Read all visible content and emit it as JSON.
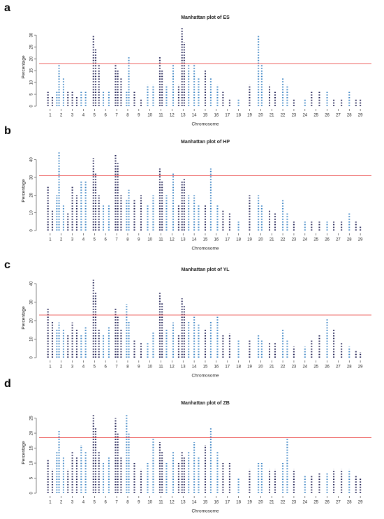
{
  "chart_data": [
    {
      "type": "manhattan",
      "panel_label": "a",
      "title": "Manhattan plot of ES",
      "x_label": "Chromosome",
      "y_label": "Percentage",
      "xlim": [
        0,
        30
      ],
      "xticks": [
        1,
        2,
        3,
        4,
        5,
        6,
        7,
        8,
        9,
        10,
        11,
        12,
        13,
        14,
        15,
        16,
        17,
        18,
        19,
        20,
        21,
        22,
        23,
        24,
        25,
        26,
        27,
        28,
        29
      ],
      "ylim": [
        0,
        33
      ],
      "yticks": [
        0,
        5,
        10,
        15,
        20,
        25,
        30
      ],
      "threshold": 18,
      "threshold_color": "#e8312f",
      "colors": [
        "#1c1c50",
        "#3b84c4"
      ],
      "x": [
        0.8,
        1.2,
        1.6,
        1.8,
        2.2,
        2.6,
        3,
        3.4,
        3.8,
        4.2,
        4.9,
        5.1,
        5.4,
        5.8,
        6.3,
        6.9,
        7.1,
        7.4,
        7.9,
        8.1,
        8.6,
        9.2,
        9.8,
        10.3,
        10.9,
        11.1,
        11.5,
        12.1,
        12.6,
        12.9,
        13.1,
        13.5,
        14,
        14.4,
        15,
        15.5,
        16.1,
        16.6,
        17.2,
        18,
        19,
        19.8,
        20.1,
        20.8,
        21.3,
        22,
        22.4,
        23,
        24,
        24.6,
        25.3,
        26,
        26.6,
        27.3,
        28,
        28.6,
        29
      ],
      "values": [
        6,
        4,
        6,
        18,
        12,
        6,
        6,
        4,
        6,
        6,
        30,
        24,
        18,
        6,
        6,
        18,
        15,
        12,
        6,
        21,
        6,
        3,
        9,
        9,
        21,
        15,
        9,
        18,
        9,
        33,
        27,
        18,
        18,
        12,
        15,
        12,
        9,
        6,
        3,
        3,
        9,
        30,
        18,
        9,
        6,
        12,
        9,
        3,
        3,
        6,
        6,
        6,
        3,
        3,
        6,
        3,
        3
      ]
    },
    {
      "type": "manhattan",
      "panel_label": "b",
      "title": "Manhattan plot of HP",
      "x_label": "Chromosome",
      "y_label": "Percentage",
      "xlim": [
        0,
        30
      ],
      "xticks": [
        1,
        2,
        3,
        4,
        5,
        6,
        7,
        8,
        9,
        10,
        11,
        12,
        13,
        14,
        15,
        16,
        17,
        18,
        19,
        20,
        21,
        22,
        23,
        24,
        25,
        26,
        27,
        28,
        29
      ],
      "ylim": [
        0,
        45
      ],
      "yticks": [
        0,
        10,
        20,
        30,
        40
      ],
      "threshold": 31,
      "threshold_color": "#e8312f",
      "colors": [
        "#1c1c50",
        "#3b84c4"
      ],
      "x": [
        0.8,
        1.2,
        1.6,
        1.8,
        2.2,
        2.6,
        3,
        3.4,
        3.8,
        4.2,
        4.9,
        5.1,
        5.4,
        5.8,
        6.3,
        6.9,
        7.1,
        7.4,
        7.9,
        8.1,
        8.6,
        9.2,
        9.8,
        10.3,
        10.9,
        11.1,
        11.5,
        12.1,
        12.6,
        12.9,
        13.1,
        13.5,
        14,
        14.4,
        15,
        15.5,
        16.1,
        16.6,
        17.2,
        18,
        19,
        19.8,
        20.1,
        20.8,
        21.3,
        22,
        22.4,
        23,
        24,
        24.6,
        25.3,
        26,
        26.6,
        27.3,
        28,
        28.6,
        29
      ],
      "values": [
        25,
        12,
        20,
        45,
        15,
        10,
        25,
        20,
        28,
        28,
        41,
        33,
        20,
        15,
        15,
        43,
        38,
        20,
        18,
        23,
        18,
        20,
        15,
        20,
        35,
        28,
        20,
        33,
        15,
        28,
        30,
        20,
        20,
        15,
        15,
        35,
        15,
        12,
        10,
        5,
        20,
        20,
        15,
        12,
        10,
        18,
        10,
        5,
        5,
        5,
        5,
        5,
        5,
        5,
        10,
        5,
        3
      ]
    },
    {
      "type": "manhattan",
      "panel_label": "c",
      "title": "Manhattan plot of YL",
      "x_label": "Chromosome",
      "y_label": "Percentage",
      "xlim": [
        0,
        30
      ],
      "xticks": [
        1,
        2,
        3,
        4,
        5,
        6,
        7,
        8,
        9,
        10,
        11,
        12,
        13,
        14,
        15,
        16,
        17,
        18,
        19,
        20,
        21,
        22,
        23,
        24,
        25,
        26,
        27,
        28,
        29
      ],
      "ylim": [
        0,
        43
      ],
      "yticks": [
        0,
        10,
        20,
        30,
        40
      ],
      "threshold": 23,
      "threshold_color": "#e8312f",
      "colors": [
        "#1c1c50",
        "#3b84c4"
      ],
      "x": [
        0.8,
        1.2,
        1.6,
        1.8,
        2.2,
        2.6,
        3,
        3.4,
        3.8,
        4.2,
        4.9,
        5.1,
        5.4,
        5.8,
        6.3,
        6.9,
        7.1,
        7.4,
        7.9,
        8.1,
        8.6,
        9.2,
        9.8,
        10.3,
        10.9,
        11.1,
        11.5,
        12.1,
        12.6,
        12.9,
        13.1,
        13.5,
        14,
        14.4,
        15,
        15.5,
        16.1,
        16.6,
        17.2,
        18,
        19,
        19.8,
        20.1,
        20.8,
        21.3,
        22,
        22.4,
        23,
        24,
        24.6,
        25.3,
        26,
        26.6,
        27.3,
        28,
        28.6,
        29
      ],
      "values": [
        27,
        20,
        15,
        19,
        15,
        12,
        19,
        15,
        12,
        17,
        42,
        35,
        15,
        12,
        17,
        27,
        22,
        15,
        29,
        20,
        10,
        8,
        8,
        14,
        35,
        30,
        15,
        19,
        12,
        32,
        28,
        20,
        22,
        18,
        15,
        20,
        22,
        12,
        13,
        10,
        10,
        12,
        10,
        8,
        8,
        15,
        10,
        6,
        6,
        10,
        12,
        21,
        15,
        8,
        6,
        4,
        3
      ]
    },
    {
      "type": "manhattan",
      "panel_label": "d",
      "title": "Manhattan plot of ZB",
      "x_label": "Chromosome",
      "y_label": "Percentage",
      "xlim": [
        0,
        30
      ],
      "xticks": [
        1,
        2,
        3,
        4,
        5,
        6,
        7,
        8,
        9,
        10,
        11,
        12,
        13,
        14,
        15,
        16,
        17,
        18,
        19,
        20,
        21,
        22,
        23,
        24,
        25,
        26,
        27,
        28,
        29
      ],
      "ylim": [
        0,
        27
      ],
      "yticks": [
        0,
        5,
        10,
        15,
        20,
        25
      ],
      "threshold": 18.5,
      "threshold_color": "#e8312f",
      "colors": [
        "#1c1c50",
        "#3b84c4"
      ],
      "x": [
        0.8,
        1.2,
        1.6,
        1.8,
        2.2,
        2.6,
        3,
        3.4,
        3.8,
        4.2,
        4.9,
        5.1,
        5.4,
        5.8,
        6.3,
        6.9,
        7.1,
        7.4,
        7.9,
        8.1,
        8.6,
        9.2,
        9.8,
        10.3,
        10.9,
        11.1,
        11.5,
        12.1,
        12.6,
        12.9,
        13.1,
        13.5,
        14,
        14.4,
        15,
        15.5,
        16.1,
        16.6,
        17.2,
        18,
        19,
        19.8,
        20.1,
        20.8,
        21.3,
        22,
        22.4,
        23,
        24,
        24.6,
        25.3,
        26,
        26.6,
        27.3,
        28,
        28.6,
        29
      ],
      "values": [
        11,
        8,
        14,
        21,
        12,
        8,
        14,
        12,
        16,
        14,
        26,
        22,
        14,
        10,
        12,
        25,
        20,
        12,
        26,
        20,
        10,
        8,
        10,
        18,
        17,
        14,
        10,
        14,
        10,
        14,
        12,
        14,
        17,
        12,
        16,
        22,
        14,
        10,
        10,
        5,
        8,
        10,
        10,
        8,
        8,
        10,
        18,
        8,
        6,
        6,
        7,
        7,
        8,
        8,
        8,
        6,
        5
      ]
    }
  ]
}
